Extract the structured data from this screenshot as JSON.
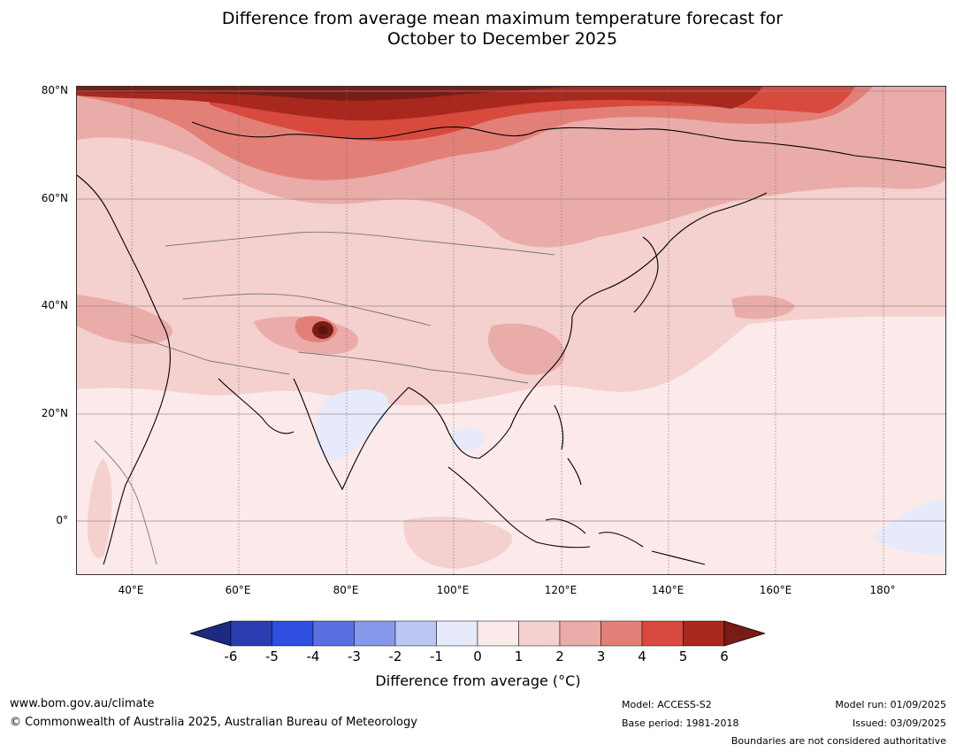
{
  "title_line1": "Difference from average mean maximum temperature forecast for",
  "title_line2": "October to December 2025",
  "map": {
    "lat_labels": [
      "80°N",
      "60°N",
      "40°N",
      "20°N",
      "0°"
    ],
    "lon_labels": [
      "40°E",
      "60°E",
      "80°E",
      "100°E",
      "120°E",
      "140°E",
      "160°E",
      "180°"
    ]
  },
  "colorbar": {
    "ticks": [
      "-6",
      "-5",
      "-4",
      "-3",
      "-2",
      "-1",
      "0",
      "1",
      "2",
      "3",
      "4",
      "5",
      "6"
    ],
    "colors": [
      "#1c2a80",
      "#2a3db0",
      "#2f4fe0",
      "#5a6fe0",
      "#8797ea",
      "#bcc6f4",
      "#e6eafa",
      "#fceaea",
      "#f4d0ce",
      "#eaaca8",
      "#e28078",
      "#d84a3e",
      "#a8281e",
      "#7a1c16"
    ],
    "label": "Difference from average (°C)"
  },
  "footer": {
    "website": "www.bom.gov.au/climate",
    "copyright": "© Commonwealth of Australia 2025, Australian Bureau of Meteorology",
    "model": "Model: ACCESS-S2",
    "base_period": "Base period: 1981-2018",
    "model_run": "Model run: 01/09/2025",
    "issued": "Issued: 03/09/2025",
    "disclaimer": "Boundaries are not considered authoritative"
  }
}
